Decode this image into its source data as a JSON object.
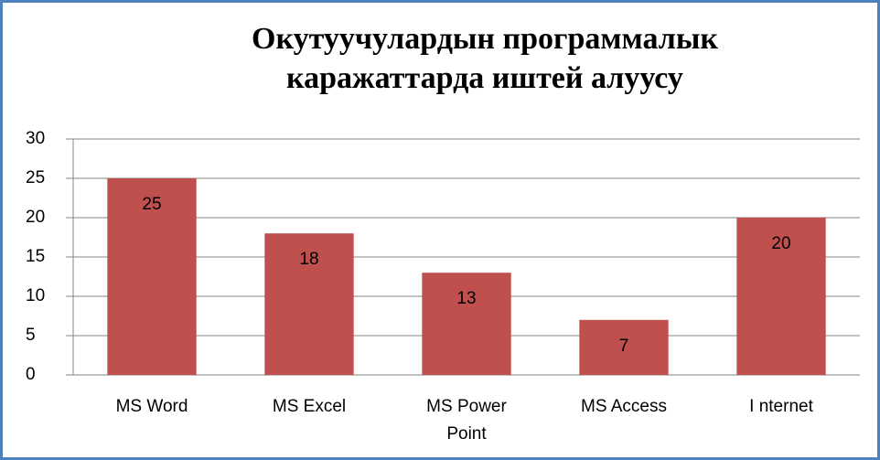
{
  "chart_data": {
    "type": "bar",
    "title": "Окутуучулардын программалык каражаттарда иштей алуусу",
    "categories": [
      "MS Word",
      "MS Excel",
      "MS Power Point",
      "MS Access",
      "I nternet"
    ],
    "values": [
      25,
      18,
      13,
      7,
      20
    ],
    "color": "#c0504d",
    "ylim": [
      0,
      30
    ],
    "yticks": [
      0,
      5,
      10,
      15,
      20,
      25,
      30
    ],
    "grid": true
  }
}
